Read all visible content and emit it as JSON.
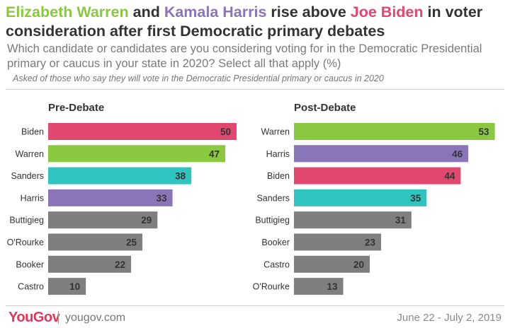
{
  "title": {
    "name1": "Elizabeth Warren",
    "and": " and ",
    "name2": "Kamala Harris",
    "rise": " rise above ",
    "name3": "Joe Biden",
    "rest": " in voter consideration after first Democratic primary debates"
  },
  "subtitle": "Which candidate or candidates are you considering voting for in the Democratic Presidential primary or caucus in your state in 2020? Select all that apply (%)",
  "note": "Asked of those who say they will vote in the Democratic Presidential primary or caucus in 2020",
  "colors": {
    "Warren": "#8ac840",
    "Harris": "#8a75b8",
    "Biden": "#e2476f",
    "Sanders": "#2ec4c0",
    "other": "#7f7f7f"
  },
  "chart_data": [
    {
      "type": "bar",
      "orientation": "horizontal",
      "title": "Pre-Debate",
      "categories": [
        "Biden",
        "Warren",
        "Sanders",
        "Harris",
        "Buttigieg",
        "O'Rourke",
        "Booker",
        "Castro"
      ],
      "values": [
        50,
        47,
        38,
        33,
        29,
        25,
        22,
        10
      ]
    },
    {
      "type": "bar",
      "orientation": "horizontal",
      "title": "Post-Debate",
      "categories": [
        "Warren",
        "Harris",
        "Biden",
        "Sanders",
        "Buttigieg",
        "Booker",
        "Castro",
        "O'Rourke"
      ],
      "values": [
        53,
        46,
        44,
        35,
        31,
        23,
        20,
        13
      ]
    }
  ],
  "footer": {
    "logo": "YouGov",
    "site": "yougov.com",
    "dates": "June 22 - July 2, 2019"
  }
}
